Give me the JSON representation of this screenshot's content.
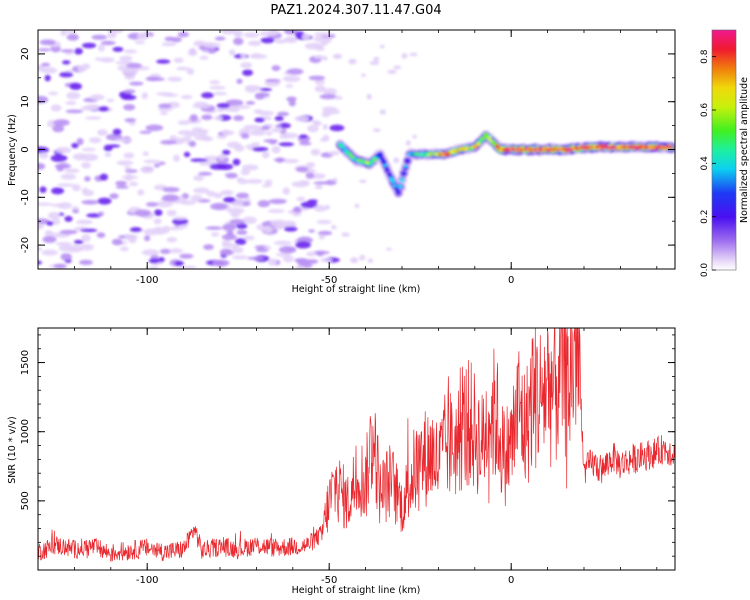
{
  "title": "PAZ1.2024.307.11.47.G04",
  "chart_data": [
    {
      "type": "heatmap",
      "xlabel": "Height of straight line (km)",
      "ylabel": "Frequency (Hz)",
      "colorbar_label": "Normalized spectral amplitude",
      "xlim": [
        -130,
        45
      ],
      "ylim": [
        -25,
        25
      ],
      "x_ticks": [
        -100,
        -50,
        0
      ],
      "x_tick_labels": [
        "-100",
        "-50",
        "0"
      ],
      "y_ticks": [
        20,
        10,
        0,
        -10,
        -20
      ],
      "y_tick_labels": [
        "20",
        "10",
        "0",
        "-10",
        "-20"
      ],
      "colorbar_range": [
        0,
        0.9
      ],
      "colorbar_ticks": [
        0.8,
        0.6,
        0.4,
        0.2,
        0.0
      ],
      "colorbar_tick_labels": [
        "0.8",
        "0.6",
        "0.4",
        "0.2",
        "0.0"
      ],
      "colormap": [
        "#ffffff",
        "#ddc8f7",
        "#a277f0",
        "#6a1cf0",
        "#1e2af5",
        "#0cd7f5",
        "#2cf08a",
        "#7aef1e",
        "#e8f00c",
        "#f2a40c",
        "#f03010",
        "#f01a8c"
      ],
      "ridge": [
        {
          "x": -47,
          "y": 1,
          "amp": 0.45
        },
        {
          "x": -43,
          "y": -2,
          "amp": 0.5
        },
        {
          "x": -39,
          "y": -3,
          "amp": 0.55
        },
        {
          "x": -36,
          "y": -1,
          "amp": 0.35
        },
        {
          "x": -33,
          "y": -6,
          "amp": 0.4
        },
        {
          "x": -31,
          "y": -9,
          "amp": 0.4
        },
        {
          "x": -28,
          "y": -1,
          "amp": 0.4
        },
        {
          "x": -23,
          "y": -1,
          "amp": 0.55
        },
        {
          "x": -18,
          "y": -1,
          "amp": 0.75
        },
        {
          "x": -14,
          "y": 0,
          "amp": 0.6
        },
        {
          "x": -10,
          "y": 0.5,
          "amp": 0.65
        },
        {
          "x": -7,
          "y": 3,
          "amp": 0.5
        },
        {
          "x": -3,
          "y": 0,
          "amp": 0.8
        },
        {
          "x": 2,
          "y": 0,
          "amp": 0.9
        },
        {
          "x": 8,
          "y": 0,
          "amp": 0.85
        },
        {
          "x": 15,
          "y": 0,
          "amp": 0.85
        },
        {
          "x": 22,
          "y": 0.5,
          "amp": 0.85
        },
        {
          "x": 30,
          "y": 0.5,
          "amp": 0.85
        },
        {
          "x": 38,
          "y": 0.5,
          "amp": 0.85
        },
        {
          "x": 44,
          "y": 0.5,
          "amp": 0.8
        }
      ]
    },
    {
      "type": "line",
      "xlabel": "Height of straight line (km)",
      "ylabel": "SNR (10 * v/v)",
      "xlim": [
        -130,
        45
      ],
      "ylim": [
        0,
        1750
      ],
      "x_ticks": [
        -100,
        -50,
        0
      ],
      "x_tick_labels": [
        "-100",
        "-50",
        "0"
      ],
      "y_ticks": [
        500,
        1000,
        1500
      ],
      "y_tick_labels": [
        "500",
        "1000",
        "1500"
      ],
      "color": "#e8282e",
      "x": [
        -130,
        -125,
        -120,
        -115,
        -110,
        -105,
        -100,
        -95,
        -90,
        -87,
        -85,
        -80,
        -75,
        -70,
        -65,
        -60,
        -56,
        -52,
        -50,
        -48,
        -45,
        -42,
        -40,
        -38,
        -36,
        -33,
        -30,
        -27,
        -25,
        -22,
        -20,
        -18,
        -15,
        -12,
        -10,
        -8,
        -6,
        -4,
        -2,
        0,
        2,
        4,
        6,
        8,
        10,
        12,
        14,
        16,
        18,
        19,
        20,
        22,
        25,
        28,
        30,
        33,
        36,
        40,
        42,
        45
      ],
      "y": [
        130,
        180,
        150,
        170,
        120,
        140,
        160,
        130,
        150,
        300,
        140,
        170,
        150,
        180,
        160,
        170,
        180,
        260,
        500,
        620,
        480,
        700,
        620,
        1000,
        560,
        650,
        460,
        700,
        780,
        850,
        760,
        900,
        920,
        1080,
        1000,
        900,
        1150,
        1100,
        820,
        900,
        1180,
        1000,
        1300,
        1250,
        1350,
        1300,
        1500,
        1350,
        1700,
        1350,
        700,
        780,
        720,
        820,
        760,
        800,
        820,
        850,
        880,
        840
      ]
    }
  ]
}
